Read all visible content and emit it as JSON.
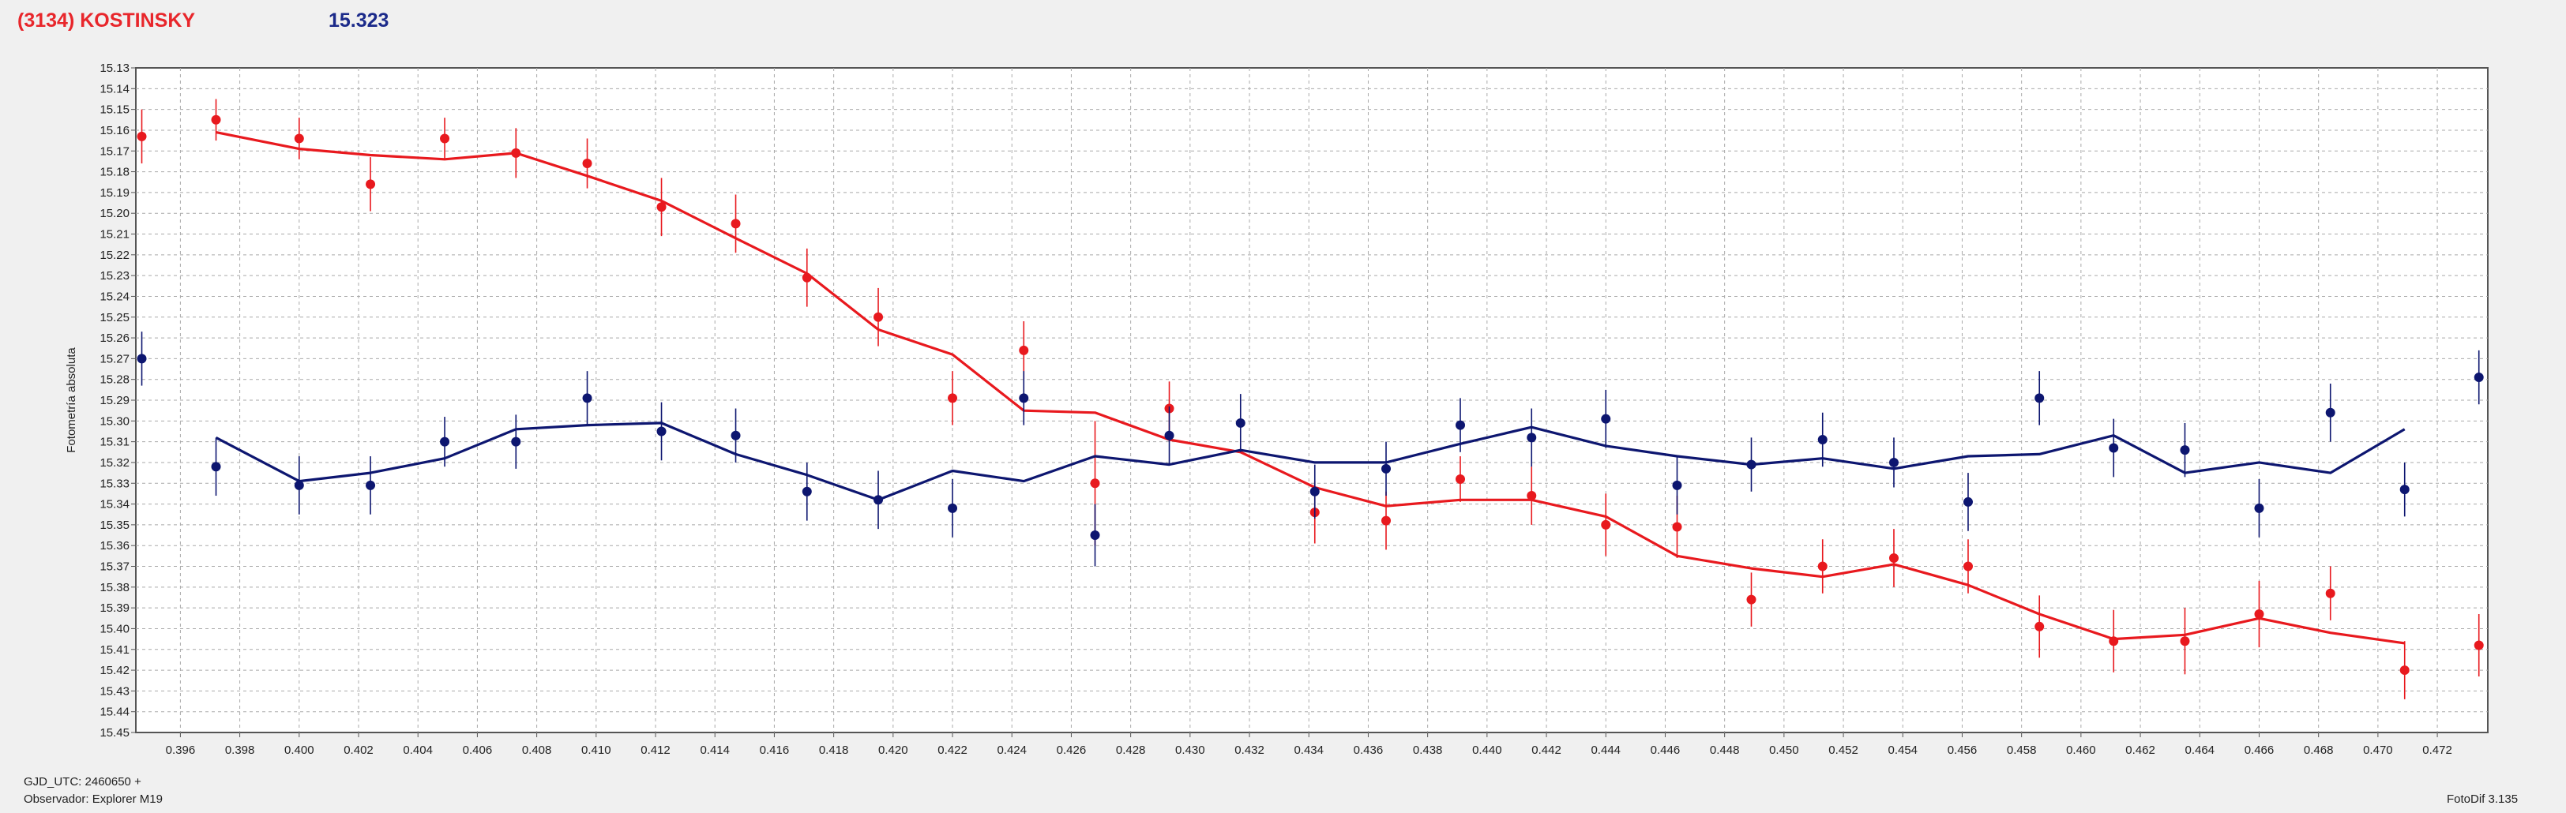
{
  "header": {
    "title": "(3134) KOSTINSKY",
    "magnitude": "15.323"
  },
  "footer": {
    "gjd": "GJD_UTC: 2460650 +",
    "observer": "Observador: Explorer M19",
    "version": "FotoDif 3.135"
  },
  "colors": {
    "red": "#e8191e",
    "blue": "#0d1670",
    "grid": "#a9a9a9",
    "plot_bg": "#ffffff"
  },
  "chart_data": {
    "type": "scatter",
    "ylabel": "Fotometría absoluta",
    "xlim": [
      0.3945,
      0.4737
    ],
    "ylim": [
      15.13,
      15.45
    ],
    "y_reversed": true,
    "grid": true,
    "x_ticks": [
      0.396,
      0.398,
      0.4,
      0.402,
      0.404,
      0.406,
      0.408,
      0.41,
      0.412,
      0.414,
      0.416,
      0.418,
      0.42,
      0.422,
      0.424,
      0.426,
      0.428,
      0.43,
      0.432,
      0.434,
      0.436,
      0.438,
      0.44,
      0.442,
      0.444,
      0.446,
      0.448,
      0.45,
      0.452,
      0.454,
      0.456,
      0.458,
      0.46,
      0.462,
      0.464,
      0.466,
      0.468,
      0.47,
      0.472
    ],
    "y_ticks": [
      15.13,
      15.14,
      15.15,
      15.16,
      15.17,
      15.18,
      15.19,
      15.2,
      15.21,
      15.22,
      15.23,
      15.24,
      15.25,
      15.26,
      15.27,
      15.28,
      15.29,
      15.3,
      15.31,
      15.32,
      15.33,
      15.34,
      15.35,
      15.36,
      15.37,
      15.38,
      15.39,
      15.4,
      15.41,
      15.42,
      15.43,
      15.44,
      15.45
    ],
    "series": [
      {
        "color": "#e8191e",
        "points": [
          {
            "x": 0.3947,
            "y": 15.163,
            "err": 0.013
          },
          {
            "x": 0.3972,
            "y": 15.155,
            "err": 0.01
          },
          {
            "x": 0.4,
            "y": 15.164,
            "err": 0.01
          },
          {
            "x": 0.4024,
            "y": 15.186,
            "err": 0.013
          },
          {
            "x": 0.4049,
            "y": 15.164,
            "err": 0.01
          },
          {
            "x": 0.4073,
            "y": 15.171,
            "err": 0.012
          },
          {
            "x": 0.4097,
            "y": 15.176,
            "err": 0.012
          },
          {
            "x": 0.4122,
            "y": 15.197,
            "err": 0.014
          },
          {
            "x": 0.4147,
            "y": 15.205,
            "err": 0.014
          },
          {
            "x": 0.4171,
            "y": 15.231,
            "err": 0.014
          },
          {
            "x": 0.4195,
            "y": 15.25,
            "err": 0.014
          },
          {
            "x": 0.422,
            "y": 15.289,
            "err": 0.013
          },
          {
            "x": 0.4244,
            "y": 15.266,
            "err": 0.014
          },
          {
            "x": 0.4268,
            "y": 15.33,
            "err": 0.03
          },
          {
            "x": 0.4293,
            "y": 15.294,
            "err": 0.013
          },
          {
            "x": 0.4366,
            "y": 15.348,
            "err": 0.014
          },
          {
            "x": 0.4342,
            "y": 15.344,
            "err": 0.015
          },
          {
            "x": 0.4391,
            "y": 15.328,
            "err": 0.011
          },
          {
            "x": 0.4415,
            "y": 15.336,
            "err": 0.014
          },
          {
            "x": 0.444,
            "y": 15.35,
            "err": 0.015
          },
          {
            "x": 0.4464,
            "y": 15.351,
            "err": 0.015
          },
          {
            "x": 0.4489,
            "y": 15.386,
            "err": 0.013
          },
          {
            "x": 0.4513,
            "y": 15.37,
            "err": 0.013
          },
          {
            "x": 0.4537,
            "y": 15.366,
            "err": 0.014
          },
          {
            "x": 0.4562,
            "y": 15.37,
            "err": 0.013
          },
          {
            "x": 0.4586,
            "y": 15.399,
            "err": 0.015
          },
          {
            "x": 0.4611,
            "y": 15.406,
            "err": 0.015
          },
          {
            "x": 0.4635,
            "y": 15.406,
            "err": 0.016
          },
          {
            "x": 0.466,
            "y": 15.393,
            "err": 0.016
          },
          {
            "x": 0.4684,
            "y": 15.383,
            "err": 0.013
          },
          {
            "x": 0.4709,
            "y": 15.42,
            "err": 0.014
          },
          {
            "x": 0.4734,
            "y": 15.408,
            "err": 0.015
          }
        ],
        "line_x": [
          0.3972,
          0.4,
          0.4024,
          0.4049,
          0.4073,
          0.4097,
          0.4122,
          0.4147,
          0.4171,
          0.4195,
          0.422,
          0.4244,
          0.4268,
          0.4293,
          0.4317,
          0.4342,
          0.4366,
          0.4391,
          0.4415,
          0.444,
          0.4464,
          0.4489,
          0.4513,
          0.4537,
          0.4562,
          0.4586,
          0.4611,
          0.4635,
          0.466,
          0.4684,
          0.4709
        ],
        "line_y": [
          15.161,
          15.169,
          15.172,
          15.174,
          15.171,
          15.182,
          15.194,
          15.212,
          15.229,
          15.256,
          15.268,
          15.295,
          15.296,
          15.309,
          15.315,
          15.332,
          15.341,
          15.338,
          15.338,
          15.346,
          15.365,
          15.371,
          15.375,
          15.369,
          15.379,
          15.393,
          15.405,
          15.403,
          15.395,
          15.402,
          15.407
        ]
      },
      {
        "color": "#0d1670",
        "points": [
          {
            "x": 0.3947,
            "y": 15.27,
            "err": 0.013
          },
          {
            "x": 0.3972,
            "y": 15.322,
            "err": 0.014
          },
          {
            "x": 0.4,
            "y": 15.331,
            "err": 0.014
          },
          {
            "x": 0.4024,
            "y": 15.331,
            "err": 0.014
          },
          {
            "x": 0.4049,
            "y": 15.31,
            "err": 0.012
          },
          {
            "x": 0.4073,
            "y": 15.31,
            "err": 0.013
          },
          {
            "x": 0.4097,
            "y": 15.289,
            "err": 0.013
          },
          {
            "x": 0.4122,
            "y": 15.305,
            "err": 0.014
          },
          {
            "x": 0.4147,
            "y": 15.307,
            "err": 0.013
          },
          {
            "x": 0.4171,
            "y": 15.334,
            "err": 0.014
          },
          {
            "x": 0.4195,
            "y": 15.338,
            "err": 0.014
          },
          {
            "x": 0.422,
            "y": 15.342,
            "err": 0.014
          },
          {
            "x": 0.4244,
            "y": 15.289,
            "err": 0.013
          },
          {
            "x": 0.4268,
            "y": 15.355,
            "err": 0.015
          },
          {
            "x": 0.4293,
            "y": 15.307,
            "err": 0.014
          },
          {
            "x": 0.4317,
            "y": 15.301,
            "err": 0.014
          },
          {
            "x": 0.4342,
            "y": 15.334,
            "err": 0.013
          },
          {
            "x": 0.4366,
            "y": 15.323,
            "err": 0.013
          },
          {
            "x": 0.4391,
            "y": 15.302,
            "err": 0.013
          },
          {
            "x": 0.4415,
            "y": 15.308,
            "err": 0.014
          },
          {
            "x": 0.444,
            "y": 15.299,
            "err": 0.014
          },
          {
            "x": 0.4464,
            "y": 15.331,
            "err": 0.014
          },
          {
            "x": 0.4489,
            "y": 15.321,
            "err": 0.013
          },
          {
            "x": 0.4513,
            "y": 15.309,
            "err": 0.013
          },
          {
            "x": 0.4537,
            "y": 15.32,
            "err": 0.012
          },
          {
            "x": 0.4562,
            "y": 15.339,
            "err": 0.014
          },
          {
            "x": 0.4586,
            "y": 15.289,
            "err": 0.013
          },
          {
            "x": 0.4611,
            "y": 15.313,
            "err": 0.014
          },
          {
            "x": 0.4635,
            "y": 15.314,
            "err": 0.013
          },
          {
            "x": 0.466,
            "y": 15.342,
            "err": 0.014
          },
          {
            "x": 0.4684,
            "y": 15.296,
            "err": 0.014
          },
          {
            "x": 0.4709,
            "y": 15.333,
            "err": 0.013
          },
          {
            "x": 0.4734,
            "y": 15.279,
            "err": 0.013
          }
        ],
        "line_x": [
          0.3972,
          0.4,
          0.4024,
          0.4049,
          0.4073,
          0.4097,
          0.4122,
          0.4147,
          0.4171,
          0.4195,
          0.422,
          0.4244,
          0.4268,
          0.4293,
          0.4317,
          0.4342,
          0.4366,
          0.4391,
          0.4415,
          0.444,
          0.4464,
          0.4489,
          0.4513,
          0.4537,
          0.4562,
          0.4586,
          0.4611,
          0.4635,
          0.466,
          0.4684,
          0.4709
        ],
        "line_y": [
          15.308,
          15.329,
          15.325,
          15.318,
          15.304,
          15.302,
          15.301,
          15.316,
          15.326,
          15.338,
          15.324,
          15.329,
          15.317,
          15.321,
          15.314,
          15.32,
          15.32,
          15.311,
          15.303,
          15.312,
          15.317,
          15.321,
          15.318,
          15.323,
          15.317,
          15.316,
          15.307,
          15.325,
          15.32,
          15.325,
          15.304
        ]
      }
    ]
  }
}
